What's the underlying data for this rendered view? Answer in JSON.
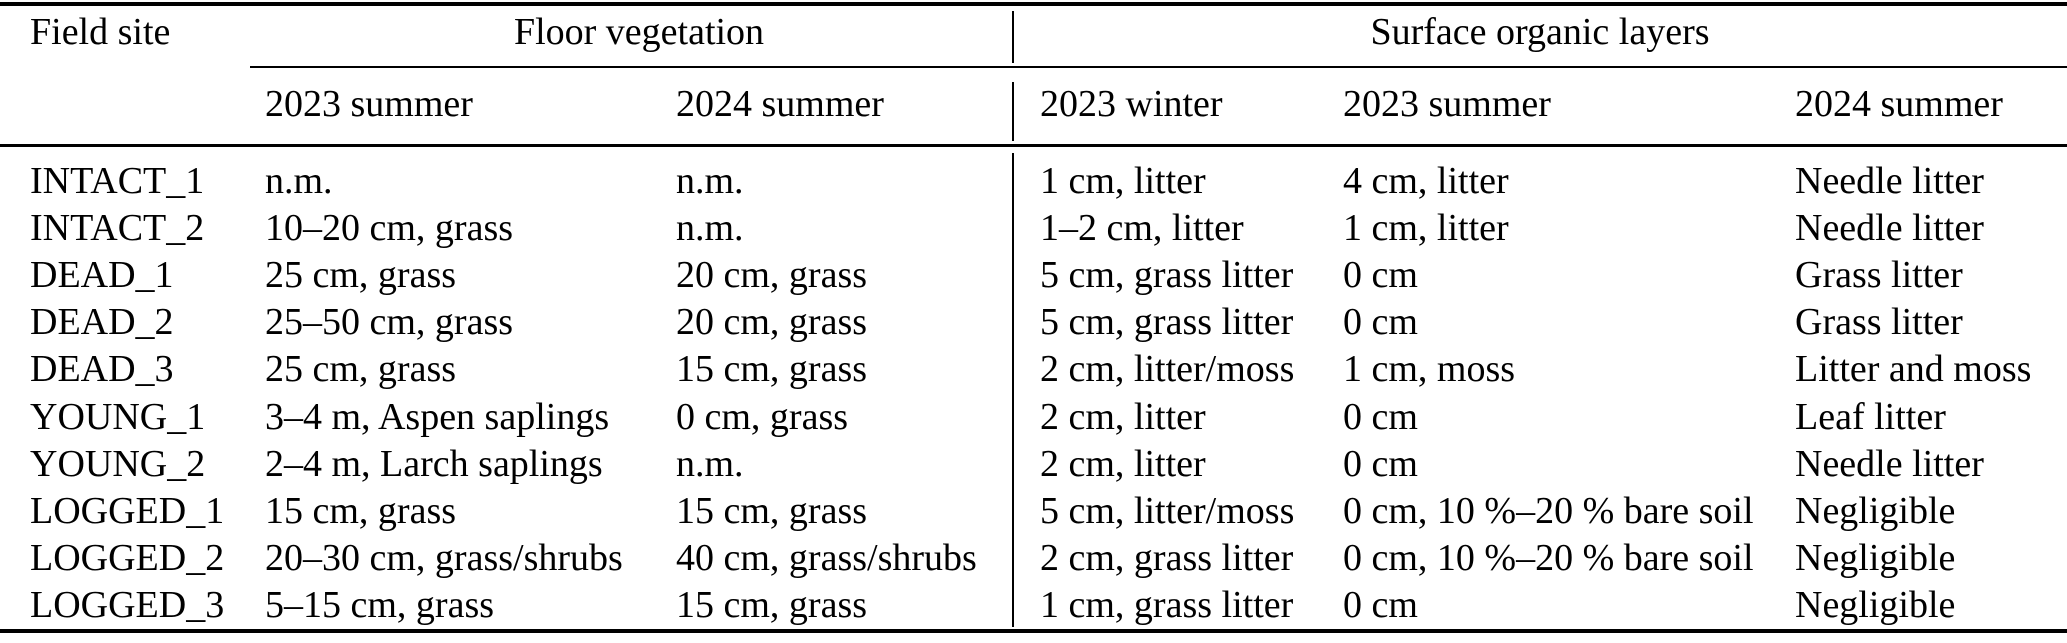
{
  "header": {
    "field_site": "Field site",
    "group1": {
      "label": "Floor vegetation",
      "subcols": [
        "2023 summer",
        "2024 summer"
      ]
    },
    "group2": {
      "label": "Surface organic layers",
      "subcols": [
        "2023 winter",
        "2023 summer",
        "2024 summer"
      ]
    }
  },
  "rows": [
    {
      "site": "INTACT_1",
      "cells": [
        "n.m.",
        "n.m.",
        "1 cm, litter",
        "4 cm, litter",
        "Needle litter"
      ]
    },
    {
      "site": "INTACT_2",
      "cells": [
        "10–20 cm, grass",
        "n.m.",
        "1–2 cm, litter",
        "1 cm, litter",
        "Needle litter"
      ]
    },
    {
      "site": "DEAD_1",
      "cells": [
        "25 cm, grass",
        "20 cm, grass",
        "5 cm, grass litter",
        "0 cm",
        "Grass litter"
      ]
    },
    {
      "site": "DEAD_2",
      "cells": [
        "25–50 cm, grass",
        "20 cm, grass",
        "5 cm, grass litter",
        "0 cm",
        "Grass litter"
      ]
    },
    {
      "site": "DEAD_3",
      "cells": [
        "25 cm, grass",
        "15 cm, grass",
        "2 cm, litter/moss",
        "1 cm, moss",
        "Litter and moss"
      ]
    },
    {
      "site": "YOUNG_1",
      "cells": [
        "3–4 m, Aspen saplings",
        "0 cm, grass",
        "2 cm, litter",
        "0 cm",
        "Leaf litter"
      ]
    },
    {
      "site": "YOUNG_2",
      "cells": [
        "2–4 m, Larch saplings",
        "n.m.",
        "2 cm, litter",
        "0 cm",
        "Needle litter"
      ]
    },
    {
      "site": "LOGGED_1",
      "cells": [
        "15 cm, grass",
        "15 cm, grass",
        "5 cm, litter/moss",
        "0 cm, 10 %–20 % bare soil",
        "Negligible"
      ]
    },
    {
      "site": "LOGGED_2",
      "cells": [
        "20–30 cm, grass/shrubs",
        "40 cm, grass/shrubs",
        "2 cm, grass litter",
        "0 cm, 10 %–20 % bare soil",
        "Negligible"
      ]
    },
    {
      "site": "LOGGED_3",
      "cells": [
        "5–15 cm, grass",
        "15 cm, grass",
        "1 cm, grass litter",
        "0 cm",
        "Negligible"
      ]
    }
  ],
  "colors": {
    "text": "#000000",
    "background": "#ffffff",
    "rule": "#000000"
  }
}
